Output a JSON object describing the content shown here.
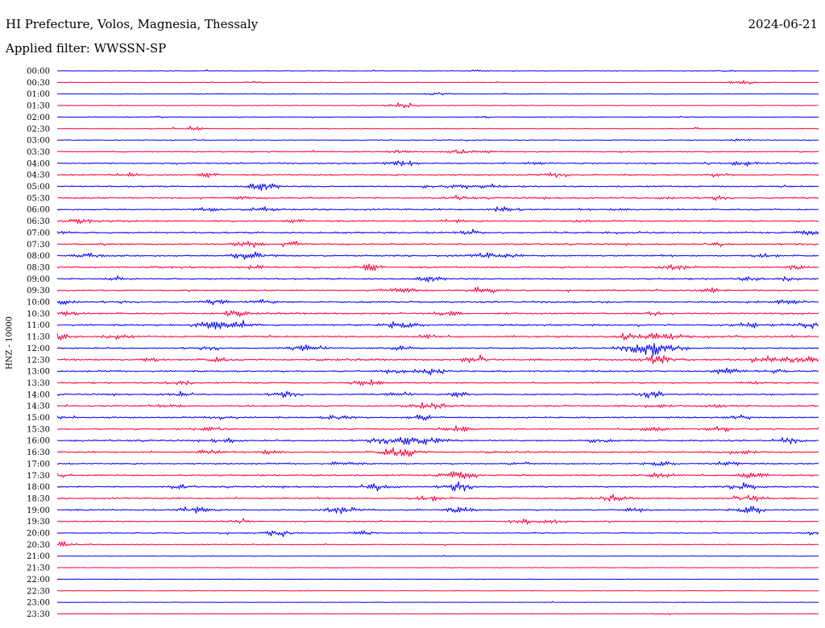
{
  "header": {
    "title": "HI Prefecture, Volos, Magnesia, Thessaly",
    "date": "2024-06-21",
    "filter": "Applied filter: WWSSN-SP"
  },
  "chart_data": {
    "type": "line",
    "ylabel": "HNZ - 10000",
    "trace_colors": [
      "#0000ff",
      "#ff0040"
    ],
    "rows": [
      "00:00",
      "00:30",
      "01:00",
      "01:30",
      "02:00",
      "02:30",
      "03:00",
      "03:30",
      "04:00",
      "04:30",
      "05:00",
      "05:30",
      "06:00",
      "06:30",
      "07:00",
      "07:30",
      "08:00",
      "08:30",
      "09:00",
      "09:30",
      "10:00",
      "10:30",
      "11:00",
      "11:30",
      "12:00",
      "12:30",
      "13:00",
      "13:30",
      "14:00",
      "14:30",
      "15:00",
      "15:30",
      "16:00",
      "16:30",
      "17:00",
      "17:30",
      "18:00",
      "18:30",
      "19:00",
      "19:30",
      "20:00",
      "20:30",
      "21:00",
      "21:30",
      "22:00",
      "22:30",
      "23:00",
      "23:30"
    ],
    "activity": [
      0.15,
      0.2,
      0.2,
      0.25,
      0.2,
      0.3,
      0.35,
      0.55,
      0.7,
      0.75,
      0.8,
      0.85,
      0.85,
      0.8,
      0.9,
      0.8,
      0.9,
      0.85,
      0.85,
      0.75,
      0.9,
      0.9,
      0.95,
      0.95,
      0.85,
      0.95,
      0.85,
      0.8,
      0.8,
      0.8,
      0.8,
      0.75,
      0.85,
      0.8,
      0.7,
      0.85,
      0.85,
      0.8,
      0.75,
      0.55,
      0.4,
      0.3,
      0.15,
      0.12,
      0.1,
      0.1,
      0.1,
      0.15
    ],
    "bursts": [
      [
        [
          0.55,
          1.5
        ],
        [
          0.88,
          1.5
        ]
      ],
      [
        [
          0.26,
          2
        ],
        [
          0.9,
          4
        ]
      ],
      [
        [
          0.5,
          3
        ]
      ],
      [
        [
          0.45,
          5
        ]
      ],
      [
        [
          0.13,
          2
        ],
        [
          0.56,
          1.5
        ]
      ],
      [
        [
          0.18,
          3
        ],
        [
          0.84,
          2
        ]
      ],
      [
        [
          0.9,
          3
        ]
      ],
      [
        [
          0.45,
          2
        ],
        [
          0.53,
          3
        ],
        [
          0.56,
          2
        ]
      ],
      [
        [
          0.45,
          6
        ],
        [
          0.63,
          3
        ],
        [
          0.9,
          4
        ]
      ],
      [
        [
          0.09,
          3
        ],
        [
          0.2,
          3
        ],
        [
          0.66,
          4
        ],
        [
          0.87,
          3
        ]
      ],
      [
        [
          0.27,
          6
        ],
        [
          0.49,
          3
        ],
        [
          0.53,
          4
        ],
        [
          0.57,
          3
        ]
      ],
      [
        [
          0.24,
          3
        ],
        [
          0.53,
          3
        ],
        [
          0.8,
          2
        ],
        [
          0.87,
          2
        ]
      ],
      [
        [
          0.2,
          3
        ],
        [
          0.27,
          4
        ],
        [
          0.59,
          5
        ],
        [
          0.74,
          2
        ]
      ],
      [
        [
          0.03,
          3
        ],
        [
          0.32,
          3
        ],
        [
          0.52,
          3
        ],
        [
          0.69,
          2
        ]
      ],
      [
        [
          0.0,
          4
        ],
        [
          0.54,
          4
        ],
        [
          0.99,
          4
        ]
      ],
      [
        [
          0.25,
          6
        ],
        [
          0.31,
          4
        ],
        [
          0.87,
          3
        ]
      ],
      [
        [
          0.04,
          5
        ],
        [
          0.25,
          8
        ],
        [
          0.56,
          4
        ],
        [
          0.59,
          3
        ],
        [
          0.93,
          3
        ]
      ],
      [
        [
          0.26,
          3
        ],
        [
          0.41,
          5
        ],
        [
          0.81,
          5
        ],
        [
          0.97,
          3
        ]
      ],
      [
        [
          0.08,
          3
        ],
        [
          0.49,
          4
        ],
        [
          0.91,
          3
        ],
        [
          0.96,
          3
        ]
      ],
      [
        [
          0.45,
          6
        ],
        [
          0.56,
          5
        ],
        [
          0.86,
          3
        ]
      ],
      [
        [
          0.0,
          6
        ],
        [
          0.21,
          4
        ],
        [
          0.27,
          4
        ],
        [
          0.96,
          5
        ]
      ],
      [
        [
          0.01,
          4
        ],
        [
          0.23,
          5
        ],
        [
          0.51,
          4
        ],
        [
          0.79,
          3
        ]
      ],
      [
        [
          0.2,
          7
        ],
        [
          0.23,
          8
        ],
        [
          0.45,
          6
        ],
        [
          0.91,
          4
        ],
        [
          0.99,
          5
        ]
      ],
      [
        [
          0.0,
          5
        ],
        [
          0.08,
          4
        ],
        [
          0.49,
          4
        ],
        [
          0.75,
          6
        ],
        [
          0.79,
          9
        ]
      ],
      [
        [
          0.21,
          3
        ],
        [
          0.33,
          6
        ],
        [
          0.45,
          5
        ],
        [
          0.78,
          12
        ]
      ],
      [
        [
          0.12,
          3
        ],
        [
          0.21,
          4
        ],
        [
          0.55,
          5
        ],
        [
          0.79,
          8
        ],
        [
          0.93,
          7
        ],
        [
          0.98,
          6
        ]
      ],
      [
        [
          0.44,
          4
        ],
        [
          0.49,
          6
        ],
        [
          0.88,
          6
        ],
        [
          0.94,
          4
        ]
      ],
      [
        [
          0.16,
          4
        ],
        [
          0.41,
          5
        ],
        [
          0.91,
          3
        ]
      ],
      [
        [
          0.16,
          4
        ],
        [
          0.3,
          4
        ],
        [
          0.45,
          4
        ],
        [
          0.53,
          5
        ],
        [
          0.78,
          5
        ]
      ],
      [
        [
          0.15,
          3
        ],
        [
          0.49,
          5
        ],
        [
          0.78,
          4
        ],
        [
          0.87,
          3
        ]
      ],
      [
        [
          0.01,
          3
        ],
        [
          0.22,
          4
        ],
        [
          0.37,
          5
        ],
        [
          0.48,
          5
        ],
        [
          0.9,
          4
        ]
      ],
      [
        [
          0.2,
          4
        ],
        [
          0.53,
          5
        ],
        [
          0.78,
          5
        ],
        [
          0.87,
          4
        ]
      ],
      [
        [
          0.22,
          4
        ],
        [
          0.45,
          10
        ],
        [
          0.49,
          6
        ],
        [
          0.71,
          4
        ],
        [
          0.96,
          4
        ]
      ],
      [
        [
          0.2,
          4
        ],
        [
          0.28,
          4
        ],
        [
          0.45,
          9
        ],
        [
          0.89,
          5
        ]
      ],
      [
        [
          0.38,
          4
        ],
        [
          0.61,
          3
        ],
        [
          0.79,
          4
        ],
        [
          0.88,
          4
        ]
      ],
      [
        [
          0.0,
          4
        ],
        [
          0.52,
          5
        ],
        [
          0.54,
          4
        ],
        [
          0.79,
          5
        ],
        [
          0.91,
          5
        ]
      ],
      [
        [
          0.16,
          3
        ],
        [
          0.42,
          6
        ],
        [
          0.53,
          6
        ],
        [
          0.9,
          6
        ]
      ],
      [
        [
          0.49,
          5
        ],
        [
          0.73,
          4
        ],
        [
          0.91,
          6
        ]
      ],
      [
        [
          0.18,
          6
        ],
        [
          0.37,
          6
        ],
        [
          0.53,
          5
        ],
        [
          0.76,
          4
        ],
        [
          0.91,
          6
        ]
      ],
      [
        [
          0.24,
          4
        ],
        [
          0.61,
          4
        ],
        [
          0.65,
          3
        ]
      ],
      [
        [
          0.29,
          5
        ],
        [
          0.4,
          3
        ],
        [
          0.99,
          3
        ]
      ],
      [
        [
          0.0,
          6
        ]
      ],
      [],
      [],
      [],
      [],
      [],
      [
        [
          0.8,
          2
        ]
      ]
    ]
  }
}
